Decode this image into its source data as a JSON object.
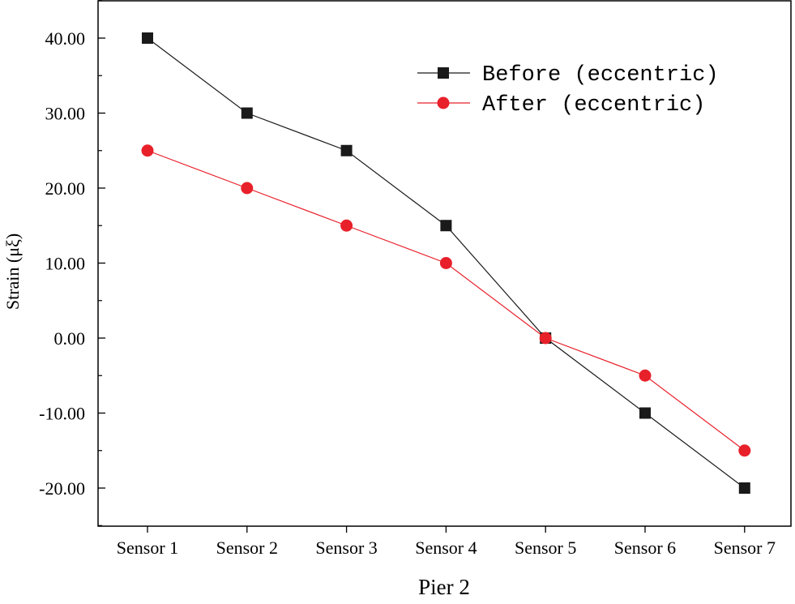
{
  "chart_data": {
    "type": "line",
    "title": "",
    "xlabel": "Pier 2",
    "ylabel": "Strain (μξ)",
    "categories": [
      "Sensor 1",
      "Sensor 2",
      "Sensor 3",
      "Sensor 4",
      "Sensor 5",
      "Sensor 6",
      "Sensor 7"
    ],
    "ylim": [
      -25,
      45
    ],
    "yticks": [
      -20,
      -10,
      0,
      10,
      20,
      30,
      40
    ],
    "ytick_labels": [
      "-20.00",
      "-10.00",
      "0.00",
      "10.00",
      "20.00",
      "30.00",
      "40.00"
    ],
    "grid": false,
    "legend_position": "top-right",
    "series": [
      {
        "name": "Before (eccentric)",
        "marker": "square",
        "color": "#1a1a1a",
        "values": [
          40,
          30,
          25,
          15,
          0,
          -10,
          -20
        ]
      },
      {
        "name": "After (eccentric)",
        "marker": "circle",
        "color": "#e8202a",
        "values": [
          25,
          20,
          15,
          10,
          0,
          -5,
          -15
        ]
      }
    ]
  }
}
